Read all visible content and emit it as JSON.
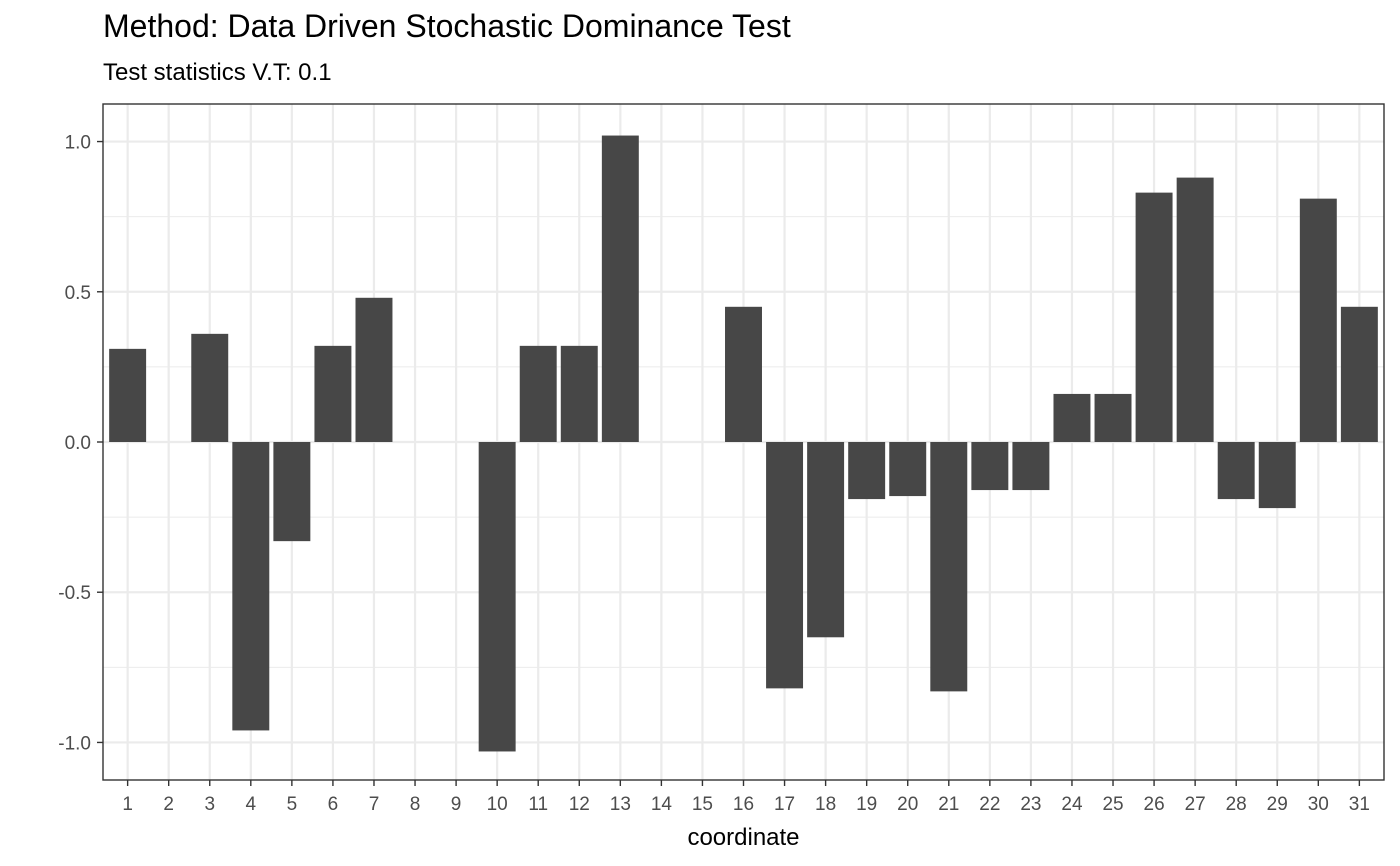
{
  "chart_data": {
    "type": "bar",
    "title": "Method: Data Driven Stochastic Dominance Test",
    "subtitle": "Test statistics V.T: 0.1",
    "xlabel": "coordinate",
    "ylabel": "",
    "categories": [
      "1",
      "2",
      "3",
      "4",
      "5",
      "6",
      "7",
      "8",
      "9",
      "10",
      "11",
      "12",
      "13",
      "14",
      "15",
      "16",
      "17",
      "18",
      "19",
      "20",
      "21",
      "22",
      "23",
      "24",
      "25",
      "26",
      "27",
      "28",
      "29",
      "30",
      "31"
    ],
    "values": [
      0.31,
      0,
      0.36,
      -0.96,
      -0.33,
      0.32,
      0.48,
      0,
      0,
      -1.03,
      0.32,
      0.32,
      1.02,
      0,
      0,
      0.45,
      -0.82,
      -0.65,
      -0.19,
      -0.18,
      -0.83,
      -0.16,
      -0.16,
      0.16,
      0.16,
      0.83,
      0.88,
      -0.19,
      -0.22,
      0.81,
      0.45
    ],
    "yticks": [
      "-1.0",
      "-0.5",
      "0.0",
      "0.5",
      "1.0"
    ],
    "ylim": [
      -1.125,
      1.125
    ],
    "grid": true,
    "bar_color": "#474747"
  }
}
